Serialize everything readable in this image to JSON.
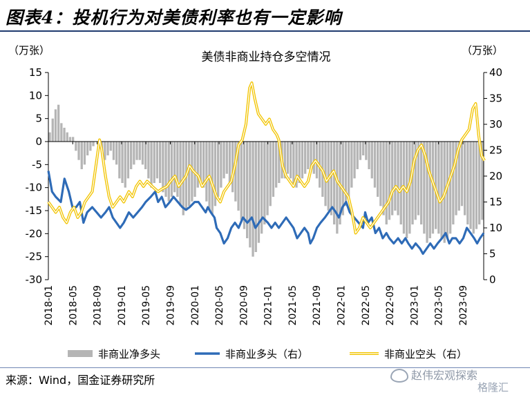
{
  "header": {
    "title": "图表4：投机行为对美债利率也有一定影响"
  },
  "source": "来源：Wind，国金证券研究所",
  "watermark": {
    "text": "赵伟宏观探索",
    "sub": "格隆汇"
  },
  "chart_data": {
    "type": "bar+line",
    "title": "美债非商业持仓多空情况",
    "left_unit": "（万张）",
    "right_unit": "（万张）",
    "ylim_left": [
      -30,
      15
    ],
    "yticks_left": [
      15,
      10,
      5,
      0,
      -5,
      -10,
      -15,
      -20,
      -25,
      -30
    ],
    "ylim_right": [
      0,
      40
    ],
    "yticks_right": [
      40,
      35,
      30,
      25,
      20,
      15,
      10,
      5,
      0
    ],
    "xtick_labels": [
      "2018-01",
      "2018-05",
      "2018-09",
      "2019-01",
      "2019-05",
      "2019-09",
      "2020-01",
      "2020-05",
      "2020-09",
      "2021-01",
      "2021-05",
      "2021-09",
      "2022-01",
      "2022-05",
      "2022-09",
      "2023-01",
      "2023-05",
      "2023-09"
    ],
    "colors": {
      "bars": "#b5b5b5",
      "long": "#2e6bb7",
      "short": "#f2c400",
      "short_inner": "#ffffff",
      "axis": "#000000"
    },
    "series": [
      {
        "name": "非商业净多头",
        "axis": "left",
        "kind": "bar",
        "x_start": "2018-01",
        "x_step_months": 0.5,
        "values": [
          2,
          5,
          7,
          8,
          4,
          3,
          2,
          1,
          1,
          -2,
          -4,
          -6,
          -5,
          -3,
          -2,
          -1,
          0,
          -1,
          -2,
          -4,
          -3,
          -2,
          -4,
          -5,
          -8,
          -9,
          -10,
          -8,
          -6,
          -5,
          -4,
          -4,
          -5,
          -6,
          -8,
          -10,
          -9,
          -8,
          -9,
          -11,
          -12,
          -13,
          -12,
          -11,
          -12,
          -14,
          -16,
          -15,
          -14,
          -13,
          -12,
          -10,
          -9,
          -10,
          -13,
          -15,
          -16,
          -14,
          -12,
          -10,
          -8,
          -7,
          -9,
          -11,
          -13,
          -15,
          -17,
          -19,
          -21,
          -23,
          -25,
          -24,
          -22,
          -20,
          -18,
          -16,
          -14,
          -12,
          -10,
          -9,
          -8,
          -8,
          -7,
          -8,
          -9,
          -10,
          -9,
          -8,
          -7,
          -6,
          -6,
          -7,
          -8,
          -10,
          -12,
          -14,
          -15,
          -16,
          -18,
          -20,
          -18,
          -16,
          -14,
          -12,
          -10,
          -8,
          -6,
          -4,
          -3,
          -4,
          -6,
          -8,
          -10,
          -12,
          -14,
          -16,
          -18,
          -17,
          -16,
          -15,
          -16,
          -18,
          -20,
          -21,
          -20,
          -18,
          -17,
          -16,
          -18,
          -20,
          -22,
          -21,
          -20,
          -19,
          -20,
          -21,
          -22,
          -21,
          -20,
          -18,
          -16,
          -15,
          -14,
          -16,
          -18,
          -19,
          -20,
          -19,
          -18,
          -17
        ]
      },
      {
        "name": "非商业多头（右）",
        "axis": "right",
        "kind": "line",
        "values": [
          [
            2018.0,
            21
          ],
          [
            2018.05,
            17
          ],
          [
            2018.1,
            16
          ],
          [
            2018.17,
            15
          ],
          [
            2018.22,
            19.5
          ],
          [
            2018.28,
            17
          ],
          [
            2018.33,
            14
          ],
          [
            2018.38,
            14
          ],
          [
            2018.43,
            15
          ],
          [
            2018.48,
            11
          ],
          [
            2018.53,
            13
          ],
          [
            2018.6,
            14
          ],
          [
            2018.66,
            13
          ],
          [
            2018.72,
            12
          ],
          [
            2018.78,
            13
          ],
          [
            2018.83,
            14
          ],
          [
            2018.88,
            12
          ],
          [
            2018.93,
            11
          ],
          [
            2018.98,
            10
          ],
          [
            2019.03,
            11
          ],
          [
            2019.1,
            13
          ],
          [
            2019.16,
            12
          ],
          [
            2019.22,
            13
          ],
          [
            2019.28,
            14
          ],
          [
            2019.33,
            15
          ],
          [
            2019.4,
            16
          ],
          [
            2019.46,
            17
          ],
          [
            2019.5,
            15
          ],
          [
            2019.55,
            16
          ],
          [
            2019.6,
            14
          ],
          [
            2019.66,
            15
          ],
          [
            2019.71,
            16
          ],
          [
            2019.77,
            15
          ],
          [
            2019.83,
            14
          ],
          [
            2019.88,
            13.5
          ],
          [
            2019.93,
            14
          ],
          [
            2020.0,
            15
          ],
          [
            2020.05,
            15
          ],
          [
            2020.1,
            14
          ],
          [
            2020.15,
            13
          ],
          [
            2020.18,
            14
          ],
          [
            2020.22,
            13
          ],
          [
            2020.27,
            12
          ],
          [
            2020.3,
            10
          ],
          [
            2020.35,
            9
          ],
          [
            2020.4,
            7
          ],
          [
            2020.45,
            8
          ],
          [
            2020.5,
            10
          ],
          [
            2020.55,
            11
          ],
          [
            2020.6,
            10
          ],
          [
            2020.66,
            12
          ],
          [
            2020.72,
            11
          ],
          [
            2020.78,
            12
          ],
          [
            2020.83,
            10
          ],
          [
            2020.88,
            11
          ],
          [
            2020.93,
            12
          ],
          [
            2021.0,
            11
          ],
          [
            2021.05,
            10
          ],
          [
            2021.1,
            11
          ],
          [
            2021.15,
            10
          ],
          [
            2021.2,
            11
          ],
          [
            2021.25,
            12
          ],
          [
            2021.3,
            11
          ],
          [
            2021.35,
            10
          ],
          [
            2021.4,
            8
          ],
          [
            2021.45,
            9
          ],
          [
            2021.5,
            10
          ],
          [
            2021.55,
            9
          ],
          [
            2021.58,
            7
          ],
          [
            2021.62,
            8
          ],
          [
            2021.67,
            10
          ],
          [
            2021.72,
            11
          ],
          [
            2021.78,
            12
          ],
          [
            2021.83,
            13
          ],
          [
            2021.88,
            14
          ],
          [
            2021.93,
            13
          ],
          [
            2021.97,
            12
          ],
          [
            2022.02,
            14
          ],
          [
            2022.07,
            15
          ],
          [
            2022.12,
            13
          ],
          [
            2022.18,
            12
          ],
          [
            2022.24,
            11
          ],
          [
            2022.3,
            10
          ],
          [
            2022.33,
            13
          ],
          [
            2022.37,
            11
          ],
          [
            2022.42,
            12
          ],
          [
            2022.47,
            9
          ],
          [
            2022.52,
            10
          ],
          [
            2022.57,
            8
          ],
          [
            2022.62,
            9
          ],
          [
            2022.66,
            8
          ],
          [
            2022.72,
            7
          ],
          [
            2022.78,
            8
          ],
          [
            2022.83,
            7
          ],
          [
            2022.88,
            8
          ],
          [
            2022.92,
            7
          ],
          [
            2022.97,
            6
          ],
          [
            2023.02,
            7
          ],
          [
            2023.08,
            6
          ],
          [
            2023.12,
            5
          ],
          [
            2023.17,
            6
          ],
          [
            2023.22,
            7
          ],
          [
            2023.27,
            6
          ],
          [
            2023.32,
            7
          ],
          [
            2023.38,
            8
          ],
          [
            2023.43,
            9
          ],
          [
            2023.48,
            7
          ],
          [
            2023.52,
            8
          ],
          [
            2023.57,
            8
          ],
          [
            2023.62,
            7
          ],
          [
            2023.67,
            8
          ],
          [
            2023.72,
            10
          ],
          [
            2023.77,
            9
          ],
          [
            2023.82,
            8
          ],
          [
            2023.86,
            7
          ],
          [
            2023.9,
            8
          ],
          [
            2023.95,
            9
          ]
        ]
      },
      {
        "name": "非商业空头（右）",
        "axis": "right",
        "kind": "double-line",
        "values": [
          [
            2018.0,
            15
          ],
          [
            2018.05,
            14
          ],
          [
            2018.1,
            13
          ],
          [
            2018.15,
            14
          ],
          [
            2018.2,
            12
          ],
          [
            2018.25,
            11
          ],
          [
            2018.3,
            13
          ],
          [
            2018.35,
            14
          ],
          [
            2018.4,
            12
          ],
          [
            2018.45,
            13
          ],
          [
            2018.5,
            15
          ],
          [
            2018.55,
            16
          ],
          [
            2018.6,
            17
          ],
          [
            2018.65,
            22
          ],
          [
            2018.7,
            27
          ],
          [
            2018.73,
            25
          ],
          [
            2018.78,
            20
          ],
          [
            2018.83,
            16
          ],
          [
            2018.88,
            14
          ],
          [
            2018.93,
            15
          ],
          [
            2018.98,
            16
          ],
          [
            2019.03,
            15
          ],
          [
            2019.1,
            17
          ],
          [
            2019.15,
            16
          ],
          [
            2019.2,
            18
          ],
          [
            2019.25,
            19
          ],
          [
            2019.3,
            18
          ],
          [
            2019.35,
            19
          ],
          [
            2019.42,
            18
          ],
          [
            2019.5,
            17
          ],
          [
            2019.55,
            17.5
          ],
          [
            2019.62,
            18
          ],
          [
            2019.67,
            19
          ],
          [
            2019.73,
            20
          ],
          [
            2019.78,
            18
          ],
          [
            2019.83,
            19
          ],
          [
            2019.88,
            20
          ],
          [
            2019.93,
            22
          ],
          [
            2019.98,
            21
          ],
          [
            2020.05,
            20
          ],
          [
            2020.1,
            18
          ],
          [
            2020.15,
            19
          ],
          [
            2020.2,
            20
          ],
          [
            2020.25,
            18
          ],
          [
            2020.3,
            16
          ],
          [
            2020.35,
            15
          ],
          [
            2020.4,
            17
          ],
          [
            2020.45,
            18
          ],
          [
            2020.5,
            19
          ],
          [
            2020.55,
            22
          ],
          [
            2020.6,
            26
          ],
          [
            2020.65,
            27
          ],
          [
            2020.7,
            30
          ],
          [
            2020.75,
            37
          ],
          [
            2020.78,
            38
          ],
          [
            2020.82,
            35
          ],
          [
            2020.87,
            32
          ],
          [
            2020.92,
            31
          ],
          [
            2020.97,
            30
          ],
          [
            2021.02,
            31
          ],
          [
            2021.07,
            29
          ],
          [
            2021.12,
            28
          ],
          [
            2021.15,
            27
          ],
          [
            2021.2,
            22
          ],
          [
            2021.25,
            20
          ],
          [
            2021.3,
            19
          ],
          [
            2021.35,
            18
          ],
          [
            2021.4,
            20
          ],
          [
            2021.45,
            19
          ],
          [
            2021.5,
            18
          ],
          [
            2021.55,
            19
          ],
          [
            2021.6,
            22
          ],
          [
            2021.65,
            23
          ],
          [
            2021.7,
            22
          ],
          [
            2021.75,
            21
          ],
          [
            2021.8,
            19
          ],
          [
            2021.85,
            20
          ],
          [
            2021.9,
            21
          ],
          [
            2021.95,
            19
          ],
          [
            2022.0,
            18
          ],
          [
            2022.05,
            17
          ],
          [
            2022.1,
            16
          ],
          [
            2022.15,
            13
          ],
          [
            2022.2,
            9
          ],
          [
            2022.25,
            10
          ],
          [
            2022.3,
            12
          ],
          [
            2022.35,
            11
          ],
          [
            2022.4,
            10
          ],
          [
            2022.45,
            11
          ],
          [
            2022.5,
            12
          ],
          [
            2022.55,
            13
          ],
          [
            2022.6,
            14
          ],
          [
            2022.65,
            15
          ],
          [
            2022.7,
            17
          ],
          [
            2022.75,
            18
          ],
          [
            2022.8,
            17
          ],
          [
            2022.85,
            18
          ],
          [
            2022.9,
            17
          ],
          [
            2022.95,
            19
          ],
          [
            2023.0,
            23
          ],
          [
            2023.05,
            25
          ],
          [
            2023.1,
            26
          ],
          [
            2023.15,
            24
          ],
          [
            2023.2,
            21
          ],
          [
            2023.25,
            19
          ],
          [
            2023.3,
            17
          ],
          [
            2023.35,
            15
          ],
          [
            2023.4,
            16
          ],
          [
            2023.45,
            18
          ],
          [
            2023.5,
            20
          ],
          [
            2023.55,
            22
          ],
          [
            2023.6,
            25
          ],
          [
            2023.65,
            27
          ],
          [
            2023.7,
            28
          ],
          [
            2023.75,
            29
          ],
          [
            2023.8,
            33
          ],
          [
            2023.84,
            34
          ],
          [
            2023.88,
            28
          ],
          [
            2023.92,
            24
          ],
          [
            2023.96,
            23
          ]
        ]
      }
    ],
    "legend": [
      {
        "label": "非商业净多头",
        "kind": "bar"
      },
      {
        "label": "非商业多头（右）",
        "kind": "line"
      },
      {
        "label": "非商业空头（右）",
        "kind": "double-line"
      }
    ],
    "legend_position": "bottom",
    "grid": false
  }
}
